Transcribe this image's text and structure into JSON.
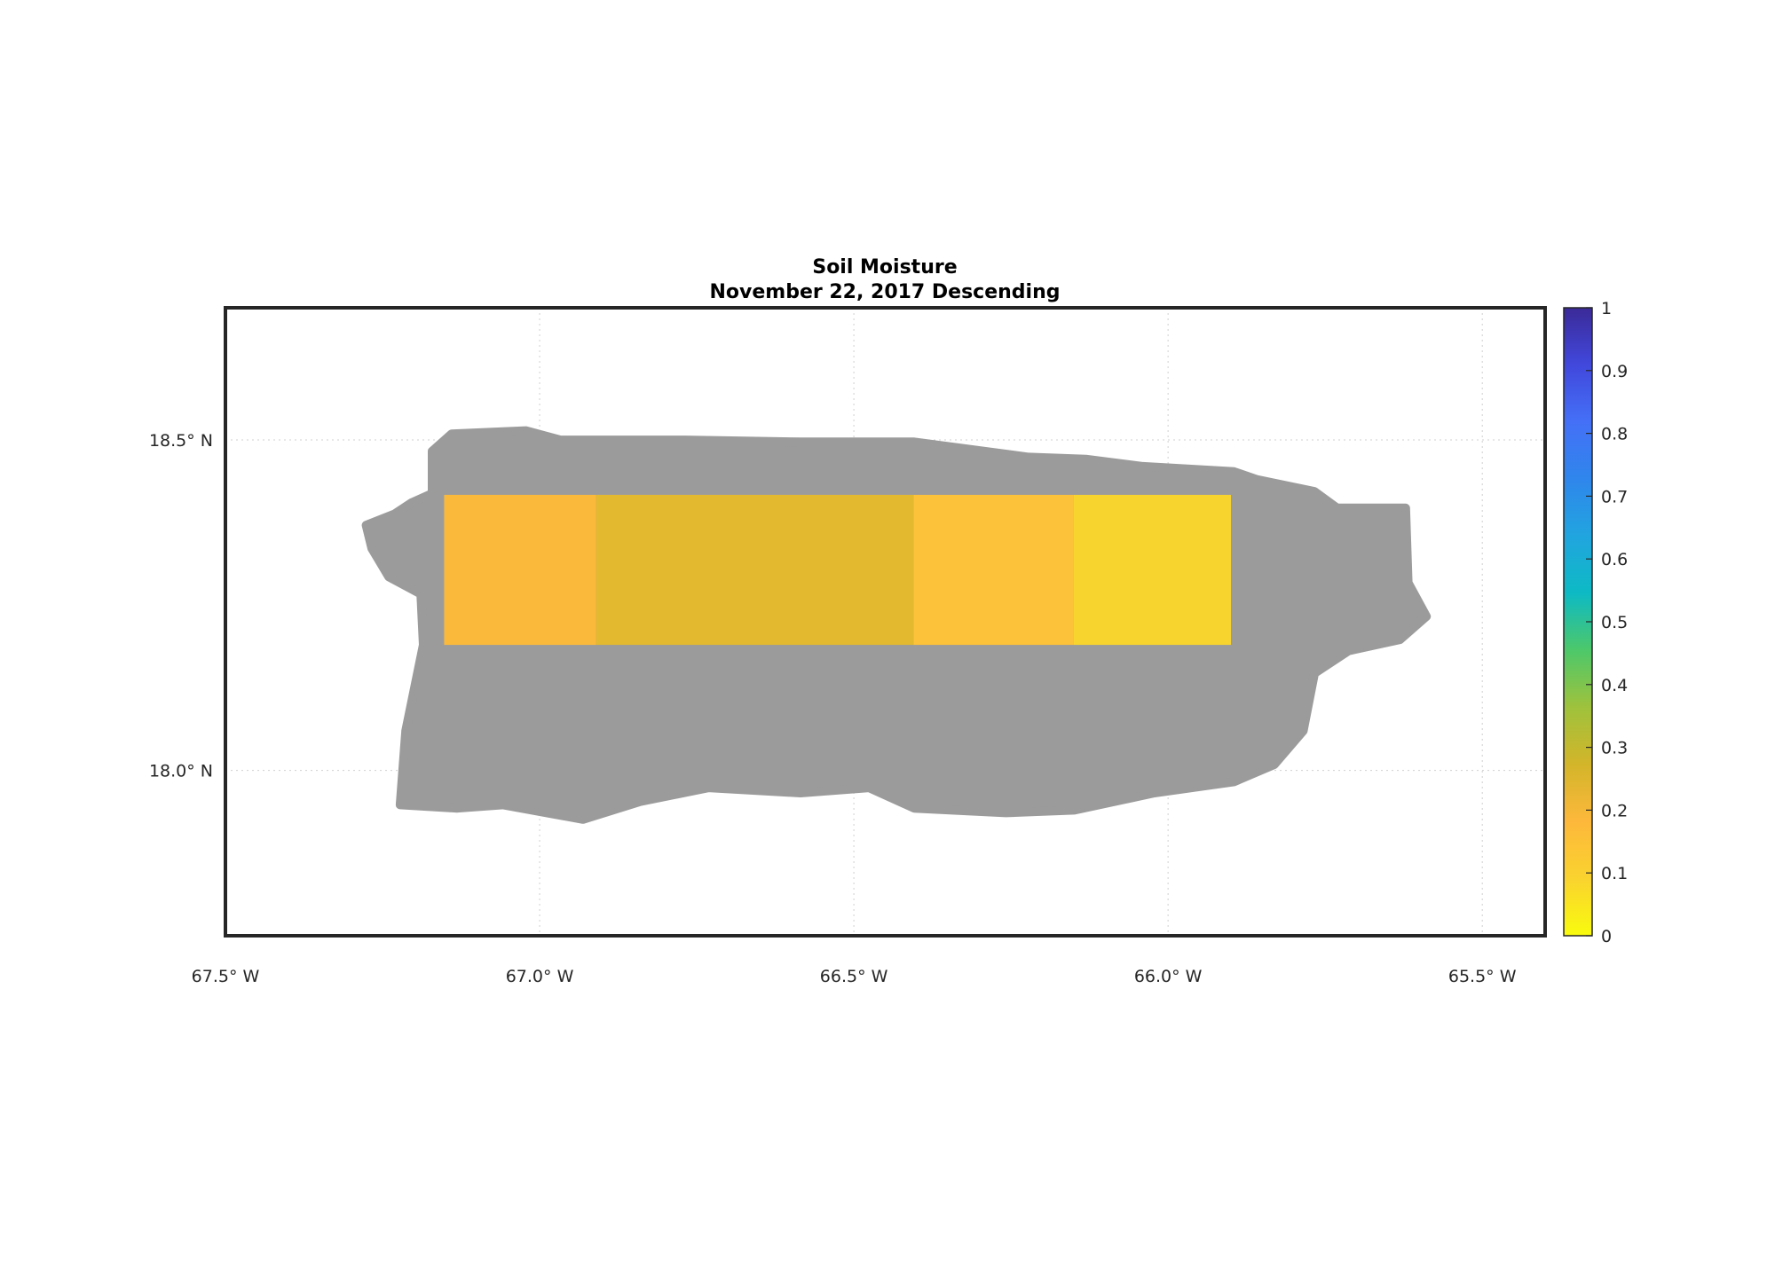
{
  "chart_data": {
    "type": "heatmap",
    "title": "Soil Moisture",
    "subtitle": "November 22, 2017 Descending",
    "xlim": [
      -67.5,
      -65.4
    ],
    "ylim": [
      17.75,
      18.7
    ],
    "x_ticks": [
      {
        "value": -67.5,
        "label": "67.5° W"
      },
      {
        "value": -67.0,
        "label": "67.0° W"
      },
      {
        "value": -66.5,
        "label": "66.5° W"
      },
      {
        "value": -66.0,
        "label": "66.0° W"
      },
      {
        "value": -65.5,
        "label": "65.5° W"
      }
    ],
    "y_ticks": [
      {
        "value": 18.5,
        "label": "18.5° N"
      },
      {
        "value": 18.0,
        "label": "18.0° N"
      }
    ],
    "grid": true,
    "land_color": "#9b9b9b",
    "land_outline": [
      [
        -67.276,
        18.371
      ],
      [
        -67.231,
        18.388
      ],
      [
        -67.204,
        18.405
      ],
      [
        -67.171,
        18.419
      ],
      [
        -67.171,
        18.483
      ],
      [
        -67.14,
        18.509
      ],
      [
        -67.022,
        18.514
      ],
      [
        -66.967,
        18.5
      ],
      [
        -66.767,
        18.5
      ],
      [
        -66.585,
        18.497
      ],
      [
        -66.404,
        18.497
      ],
      [
        -66.222,
        18.474
      ],
      [
        -66.131,
        18.471
      ],
      [
        -66.04,
        18.46
      ],
      [
        -65.895,
        18.452
      ],
      [
        -65.858,
        18.44
      ],
      [
        -65.767,
        18.422
      ],
      [
        -65.731,
        18.397
      ],
      [
        -65.622,
        18.397
      ],
      [
        -65.618,
        18.284
      ],
      [
        -65.589,
        18.233
      ],
      [
        -65.631,
        18.198
      ],
      [
        -65.713,
        18.181
      ],
      [
        -65.767,
        18.147
      ],
      [
        -65.785,
        18.06
      ],
      [
        -65.831,
        18.009
      ],
      [
        -65.895,
        17.983
      ],
      [
        -66.022,
        17.966
      ],
      [
        -66.149,
        17.94
      ],
      [
        -66.258,
        17.936
      ],
      [
        -66.404,
        17.943
      ],
      [
        -66.476,
        17.974
      ],
      [
        -66.585,
        17.966
      ],
      [
        -66.731,
        17.974
      ],
      [
        -66.84,
        17.953
      ],
      [
        -66.931,
        17.926
      ],
      [
        -67.058,
        17.948
      ],
      [
        -67.131,
        17.943
      ],
      [
        -67.222,
        17.948
      ],
      [
        -67.213,
        18.06
      ],
      [
        -67.185,
        18.19
      ],
      [
        -67.189,
        18.267
      ],
      [
        -67.24,
        18.293
      ],
      [
        -67.267,
        18.336
      ]
    ],
    "cells": [
      {
        "lon": [
          -67.152,
          -66.91
        ],
        "lat": [
          18.19,
          18.417
        ],
        "value": 0.17,
        "color": "#fbb93c"
      },
      {
        "lon": [
          -66.91,
          -66.405
        ],
        "lat": [
          18.19,
          18.417
        ],
        "value": 0.23,
        "color": "#e2b92f"
      },
      {
        "lon": [
          -66.405,
          -66.15
        ],
        "lat": [
          18.19,
          18.417
        ],
        "value": 0.15,
        "color": "#fcc23a"
      },
      {
        "lon": [
          -66.15,
          -65.9
        ],
        "lat": [
          18.19,
          18.417
        ],
        "value": 0.08,
        "color": "#f8d42f"
      }
    ],
    "colorbar": {
      "range": [
        0,
        1
      ],
      "ticks": [
        "0",
        "0.1",
        "0.2",
        "0.3",
        "0.4",
        "0.5",
        "0.6",
        "0.7",
        "0.8",
        "0.9",
        "1"
      ],
      "colormap": [
        "#f9fb0e",
        "#fad32f",
        "#fdb83b",
        "#d3b52a",
        "#9fc23c",
        "#4dc86a",
        "#0dbac4",
        "#21a5df",
        "#2f86ec",
        "#4470f7",
        "#4148dc",
        "#3b2a98"
      ]
    }
  }
}
